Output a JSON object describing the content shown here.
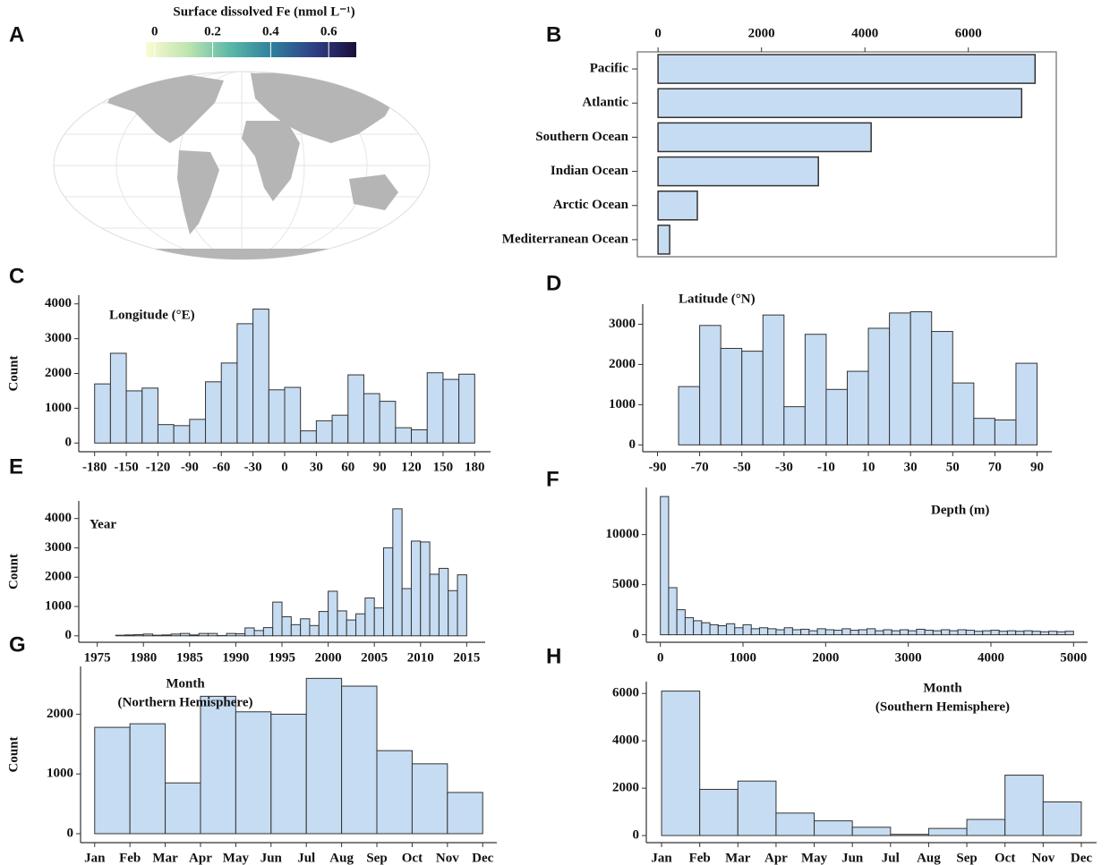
{
  "chart_data": [
    {
      "type": "colorbar",
      "panel": "A",
      "title": "Surface dissolved Fe (nmol L⁻¹)",
      "lim": [
        -0.03,
        0.695
      ],
      "ticks": [
        0,
        0.2,
        0.4,
        0.6
      ],
      "colors": [
        "#fbfbd2",
        "#bfe4b0",
        "#5bb8a8",
        "#2f7f9c",
        "#2f3f86",
        "#1b0f3a"
      ]
    },
    {
      "type": "hbar",
      "panel": "B",
      "categories": [
        "Pacific",
        "Atlantic",
        "Southern Ocean",
        "Indian Ocean",
        "Arctic Ocean",
        "Mediterranean Ocean"
      ],
      "values": [
        7290,
        7030,
        4120,
        3100,
        760,
        225
      ],
      "xlim": [
        -400,
        7700
      ],
      "xticks": [
        0,
        2000,
        4000,
        6000
      ],
      "color": "#c6dcf2"
    },
    {
      "type": "histogram",
      "panel": "C",
      "title": "Longitude (°E)",
      "ylabel": "Count",
      "bins": [
        -180,
        -165,
        -150,
        -135,
        -120,
        -105,
        -90,
        -75,
        -60,
        -45,
        -30,
        -15,
        0,
        15,
        30,
        45,
        60,
        75,
        90,
        105,
        120,
        135,
        150,
        165,
        180
      ],
      "values": [
        1700,
        2580,
        1500,
        1580,
        530,
        500,
        680,
        1760,
        2300,
        3430,
        3850,
        1530,
        1600,
        350,
        640,
        800,
        1960,
        1420,
        1200,
        440,
        380,
        2020,
        1830,
        1980
      ],
      "xlim": [
        -195,
        195
      ],
      "ylim": [
        -250,
        4250
      ],
      "xticks": [
        -180,
        -150,
        -120,
        -90,
        -60,
        -30,
        0,
        30,
        60,
        90,
        120,
        150,
        180
      ],
      "yticks": [
        0,
        1000,
        2000,
        3000,
        4000
      ],
      "color": "#c6dcf2"
    },
    {
      "type": "histogram",
      "panel": "D",
      "title": "Latitude (°N)",
      "bins": [
        -90,
        -80,
        -70,
        -60,
        -50,
        -40,
        -30,
        -20,
        -10,
        0,
        10,
        20,
        30,
        40,
        50,
        60,
        70,
        80,
        90
      ],
      "values": [
        0,
        1450,
        2970,
        2400,
        2330,
        3230,
        950,
        2750,
        1380,
        1830,
        2900,
        3280,
        3310,
        2820,
        1540,
        660,
        620,
        2030
      ],
      "xlim": [
        -97,
        97
      ],
      "ylim": [
        -170,
        3500
      ],
      "xticks": [
        -90,
        -70,
        -50,
        -30,
        -10,
        10,
        30,
        50,
        70,
        90
      ],
      "yticks": [
        0,
        1000,
        2000,
        3000
      ],
      "color": "#c6dcf2"
    },
    {
      "type": "histogram",
      "panel": "E",
      "title": "Year",
      "ylabel": "Count",
      "bins": [
        1975,
        1976,
        1977,
        1978,
        1979,
        1980,
        1981,
        1982,
        1983,
        1984,
        1985,
        1986,
        1987,
        1988,
        1989,
        1990,
        1991,
        1992,
        1993,
        1994,
        1995,
        1996,
        1997,
        1998,
        1999,
        2000,
        2001,
        2002,
        2003,
        2004,
        2005,
        2006,
        2007,
        2008,
        2009,
        2010,
        2011,
        2012,
        2013,
        2014,
        2015
      ],
      "values": [
        0,
        0,
        20,
        30,
        40,
        60,
        20,
        30,
        60,
        80,
        30,
        80,
        80,
        10,
        80,
        70,
        270,
        180,
        280,
        1150,
        650,
        380,
        580,
        350,
        830,
        1520,
        850,
        540,
        750,
        1290,
        950,
        3000,
        4330,
        1610,
        3230,
        3200,
        2100,
        2300,
        1540,
        2080
      ],
      "xlim": [
        1973,
        2017
      ],
      "ylim": [
        -220,
        4600
      ],
      "xticks": [
        1975,
        1980,
        1985,
        1990,
        1995,
        2000,
        2005,
        2010,
        2015
      ],
      "yticks": [
        0,
        1000,
        2000,
        3000,
        4000
      ],
      "color": "#c6dcf2"
    },
    {
      "type": "histogram",
      "panel": "F",
      "title": "Depth (m)",
      "bins": [
        0,
        100,
        200,
        300,
        400,
        500,
        600,
        700,
        800,
        900,
        1000,
        1100,
        1200,
        1300,
        1400,
        1500,
        1600,
        1700,
        1800,
        1900,
        2000,
        2100,
        2200,
        2300,
        2400,
        2500,
        2600,
        2700,
        2800,
        2900,
        3000,
        3100,
        3200,
        3300,
        3400,
        3500,
        3600,
        3700,
        3800,
        3900,
        4000,
        4100,
        4200,
        4300,
        4400,
        4500,
        4600,
        4700,
        4800,
        4900,
        5000
      ],
      "values": [
        13800,
        4700,
        2500,
        1700,
        1400,
        1200,
        1000,
        900,
        1100,
        700,
        1000,
        600,
        700,
        600,
        500,
        700,
        500,
        550,
        400,
        600,
        500,
        450,
        600,
        450,
        500,
        600,
        400,
        500,
        400,
        500,
        400,
        550,
        450,
        400,
        500,
        400,
        500,
        450,
        350,
        400,
        450,
        350,
        400,
        350,
        400,
        350,
        300,
        350,
        300,
        350
      ],
      "xlim": [
        -170,
        5170
      ],
      "ylim": [
        -750,
        14700
      ],
      "xticks": [
        0,
        1000,
        2000,
        3000,
        4000,
        5000
      ],
      "yticks": [
        0,
        5000,
        10000
      ],
      "color": "#c6dcf2"
    },
    {
      "type": "histogram",
      "panel": "G",
      "title": "Month",
      "subtitle": "(Northern Hemisphere)",
      "ylabel": "Count",
      "bins": [
        1,
        2,
        3,
        4,
        5,
        6,
        7,
        8,
        9,
        10,
        11,
        12
      ],
      "values": [
        1780,
        1840,
        850,
        2300,
        2040,
        2000,
        2600,
        2470,
        1390,
        1170,
        690
      ],
      "xlim": [
        0.6,
        12.4
      ],
      "ylim": [
        -150,
        2800
      ],
      "xticks": [
        {
          "value": 1,
          "label": "Jan"
        },
        {
          "value": 2,
          "label": "Feb"
        },
        {
          "value": 3,
          "label": "Mar"
        },
        {
          "value": 4,
          "label": "Apr"
        },
        {
          "value": 5,
          "label": "May"
        },
        {
          "value": 6,
          "label": "Jun"
        },
        {
          "value": 7,
          "label": "Jul"
        },
        {
          "value": 8,
          "label": "Aug"
        },
        {
          "value": 9,
          "label": "Sep"
        },
        {
          "value": 10,
          "label": "Oct"
        },
        {
          "value": 11,
          "label": "Nov"
        },
        {
          "value": 12,
          "label": "Dec"
        }
      ],
      "yticks": [
        0,
        1000,
        2000
      ],
      "color": "#c6dcf2"
    },
    {
      "type": "histogram",
      "panel": "H",
      "title": "Month",
      "subtitle": "(Southern Hemisphere)",
      "bins": [
        1,
        2,
        3,
        4,
        5,
        6,
        7,
        8,
        9,
        10,
        11,
        12
      ],
      "values": [
        6100,
        1950,
        2300,
        950,
        620,
        350,
        50,
        300,
        680,
        2550,
        1420
      ],
      "xlim": [
        0.6,
        12.4
      ],
      "ylim": [
        -300,
        6500
      ],
      "xticks": [
        {
          "value": 1,
          "label": "Jan"
        },
        {
          "value": 2,
          "label": "Feb"
        },
        {
          "value": 3,
          "label": "Mar"
        },
        {
          "value": 4,
          "label": "Apr"
        },
        {
          "value": 5,
          "label": "May"
        },
        {
          "value": 6,
          "label": "Jun"
        },
        {
          "value": 7,
          "label": "Jul"
        },
        {
          "value": 8,
          "label": "Aug"
        },
        {
          "value": 9,
          "label": "Sep"
        },
        {
          "value": 10,
          "label": "Oct"
        },
        {
          "value": 11,
          "label": "Nov"
        },
        {
          "value": 12,
          "label": "Dec"
        }
      ],
      "yticks": [
        0,
        2000,
        4000,
        6000
      ],
      "color": "#c6dcf2"
    }
  ]
}
